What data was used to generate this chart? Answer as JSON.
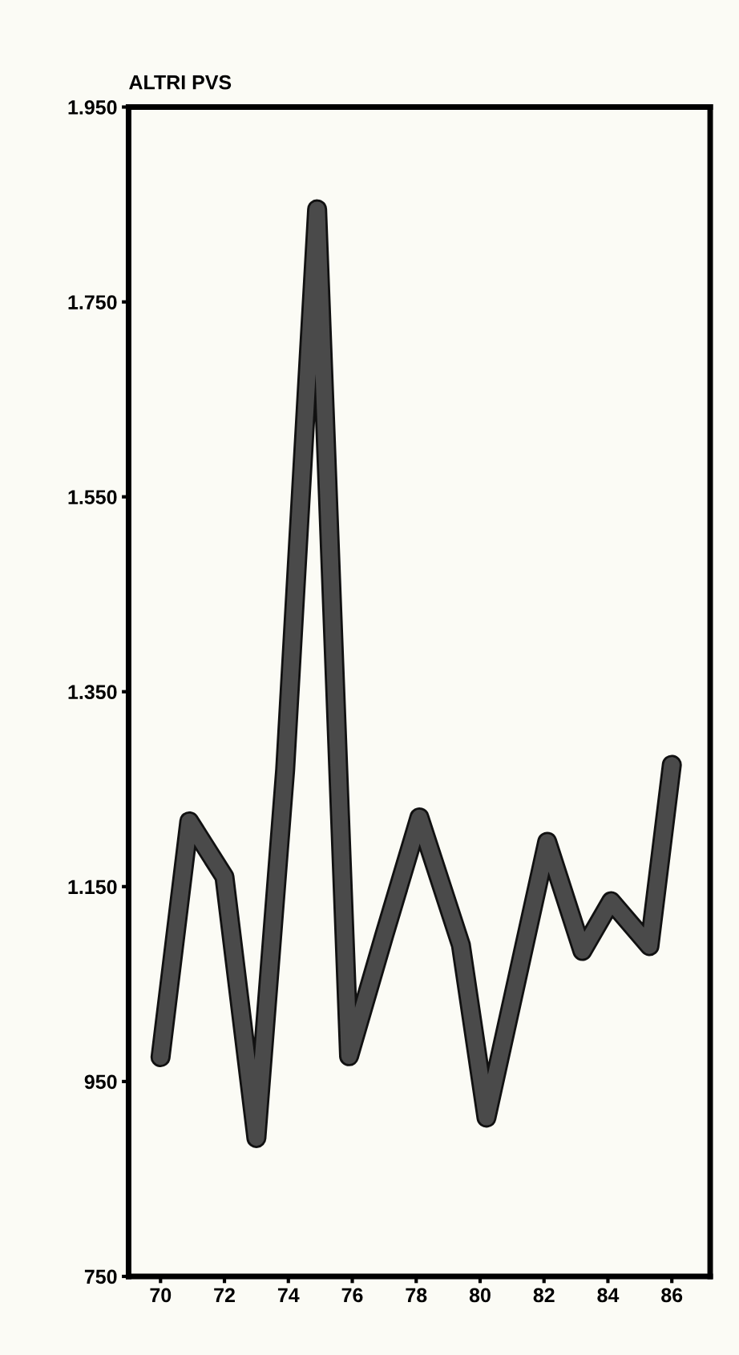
{
  "chart_data": {
    "type": "line",
    "title": "ALTRI PVS",
    "x": [
      70,
      70.9,
      72,
      73,
      73.9,
      74.9,
      75.9,
      77,
      78.1,
      79.4,
      80.2,
      82.1,
      83.2,
      84.1,
      85.3,
      86
    ],
    "series": [
      {
        "color": "#4a4a4a",
        "values": [
          975,
          1217,
          1160,
          892,
          1270,
          1845,
          976,
          1100,
          1221,
          1090,
          913,
          1196,
          1084,
          1135,
          1089,
          1275
        ]
      }
    ],
    "xlim": [
      69,
      87.2
    ],
    "xticks": [
      70,
      72,
      74,
      76,
      78,
      80,
      82,
      84,
      86
    ],
    "ylim": [
      750,
      1950
    ],
    "yticks": [
      750,
      950,
      {
        "value": 1150,
        "label": "1.150"
      },
      {
        "value": 1350,
        "label": "1.350"
      },
      {
        "value": 1550,
        "label": "1.550"
      },
      {
        "value": 1750,
        "label": "1.750"
      },
      {
        "value": 1950,
        "label": "1.950"
      }
    ],
    "grid": false,
    "legend": false,
    "marker": "none",
    "line_style": "solid"
  }
}
